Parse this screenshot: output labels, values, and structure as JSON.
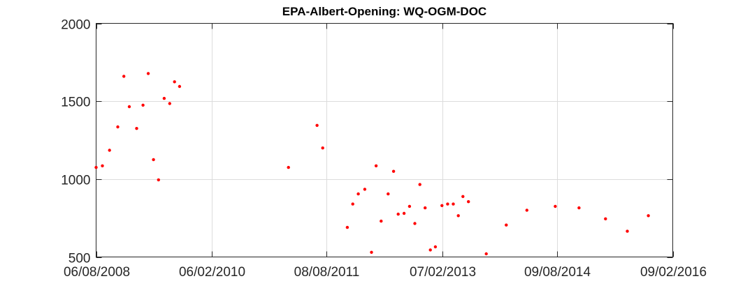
{
  "chart_data": {
    "type": "scatter",
    "title": "EPA-Albert-Opening: WQ-OGM-DOC",
    "xlabel": "",
    "ylabel": "",
    "xlim": [
      "2008-08-06",
      "2016-02-09"
    ],
    "ylim": [
      500,
      2000
    ],
    "x_ticks": [
      "2008-08-06",
      "2010-02-06",
      "2011-08-08",
      "2013-02-07",
      "2014-08-09",
      "2016-02-09"
    ],
    "x_tick_labels": [
      "06/08/2008",
      "06/02/2010",
      "08/08/2011",
      "07/02/2013",
      "09/08/2014",
      "09/02/2016"
    ],
    "y_ticks": [
      500,
      1000,
      1500,
      2000
    ],
    "y_tick_labels": [
      "500",
      "1000",
      "1500",
      "2000"
    ],
    "grid": true,
    "marker_color": "#ff0000",
    "series": [
      {
        "x": [
          "2008-08-06",
          "2008-09-05",
          "2008-10-09",
          "2008-11-17",
          "2008-12-16",
          "2009-01-11",
          "2009-02-15",
          "2009-03-17",
          "2009-04-11",
          "2009-05-06",
          "2009-05-30",
          "2009-06-26",
          "2009-07-22",
          "2009-08-14",
          "2009-09-07",
          "2009-10-01",
          "2011-02-07",
          "2011-06-23",
          "2011-07-20",
          "2011-11-14",
          "2011-12-10",
          "2012-01-05",
          "2012-02-05",
          "2012-03-08",
          "2012-03-30",
          "2012-04-23",
          "2012-05-26",
          "2012-06-21",
          "2012-07-13",
          "2012-08-10",
          "2012-09-05",
          "2012-09-30",
          "2012-10-24",
          "2012-11-18",
          "2012-12-13",
          "2013-01-06",
          "2013-02-06",
          "2013-03-05",
          "2013-04-01",
          "2013-04-25",
          "2013-05-17",
          "2013-06-12",
          "2013-09-05",
          "2013-12-09",
          "2014-03-17",
          "2014-07-30",
          "2014-11-20",
          "2015-03-26",
          "2015-07-08",
          "2015-10-16",
          "2016-01-14",
          "2016-02-09"
        ],
        "y": [
          1075,
          1085,
          1185,
          1335,
          1660,
          1465,
          1325,
          1475,
          1678,
          1125,
          995,
          1518,
          1485,
          1625,
          1595,
          null,
          1075,
          1345,
          1200,
          690,
          840,
          905,
          935,
          530,
          1085,
          730,
          905,
          1050,
          775,
          780,
          825,
          715,
          965,
          815,
          545,
          565,
          830,
          840,
          840,
          765,
          888,
          855,
          520,
          705,
          800,
          825,
          815,
          745,
          665,
          765,
          null,
          null
        ]
      }
    ]
  }
}
